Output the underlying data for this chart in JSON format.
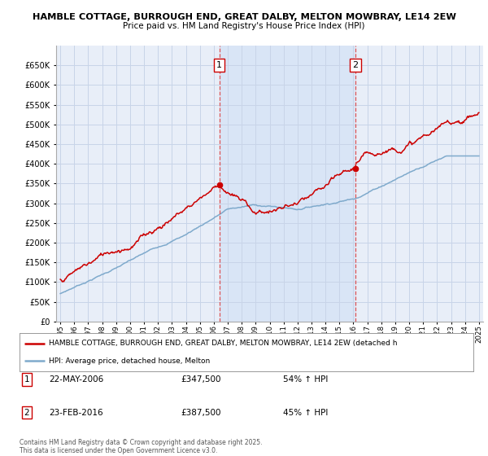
{
  "title": "HAMBLE COTTAGE, BURROUGH END, GREAT DALBY, MELTON MOWBRAY, LE14 2EW",
  "subtitle": "Price paid vs. HM Land Registry's House Price Index (HPI)",
  "background_color": "#ffffff",
  "plot_bg_color": "#e8eef8",
  "plot_bg_color2": "#dce6f5",
  "grid_color": "#c8d4e8",
  "red_color": "#cc0000",
  "blue_color": "#7faacc",
  "ylim": [
    0,
    700000
  ],
  "yticks": [
    0,
    50000,
    100000,
    150000,
    200000,
    250000,
    300000,
    350000,
    400000,
    450000,
    500000,
    550000,
    600000,
    650000
  ],
  "purchase1_x": 2006.39,
  "purchase1_y": 347500,
  "purchase2_x": 2016.15,
  "purchase2_y": 387500,
  "legend_label_red": "HAMBLE COTTAGE, BURROUGH END, GREAT DALBY, MELTON MOWBRAY, LE14 2EW (detached h",
  "legend_label_blue": "HPI: Average price, detached house, Melton",
  "footer": "Contains HM Land Registry data © Crown copyright and database right 2025.\nThis data is licensed under the Open Government Licence v3.0.",
  "table_rows": [
    {
      "num": "1",
      "date": "22-MAY-2006",
      "price": "£347,500",
      "hpi": "54% ↑ HPI"
    },
    {
      "num": "2",
      "date": "23-FEB-2016",
      "price": "£387,500",
      "hpi": "45% ↑ HPI"
    }
  ],
  "xmin": 1994.7,
  "xmax": 2025.3
}
